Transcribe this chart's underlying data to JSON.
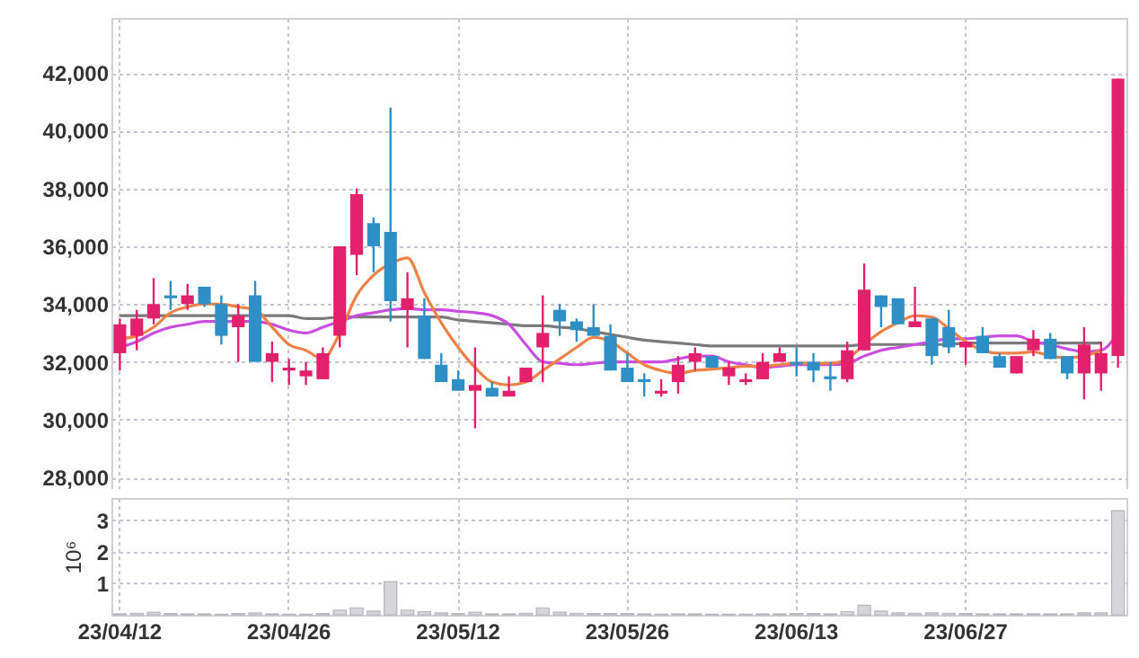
{
  "chart_data": [
    {
      "type": "candlestick",
      "categories": [
        null,
        null,
        null,
        null,
        null,
        null,
        null,
        null,
        null,
        null,
        null,
        null,
        null,
        null,
        null,
        null,
        null,
        null,
        null,
        null,
        null,
        null,
        null,
        null,
        null,
        null,
        null,
        null,
        null,
        null,
        null,
        null,
        null,
        null,
        null,
        null,
        null,
        null,
        null,
        null,
        null,
        null,
        null,
        null,
        null,
        null,
        null,
        null,
        null,
        null,
        null,
        null,
        null,
        null,
        null,
        null,
        null,
        null,
        null,
        null
      ],
      "ohlc": [
        [
          32300,
          33500,
          31700,
          33300
        ],
        [
          32900,
          33800,
          32400,
          33500
        ],
        [
          33500,
          34900,
          33300,
          34000
        ],
        [
          34300,
          34800,
          33800,
          34200
        ],
        [
          34000,
          34700,
          33800,
          34300
        ],
        [
          34600,
          34600,
          33900,
          34000
        ],
        [
          34000,
          34300,
          32600,
          32900
        ],
        [
          33200,
          34000,
          32000,
          33600
        ],
        [
          34300,
          34800,
          32000,
          32000
        ],
        [
          32000,
          32700,
          31300,
          32300
        ],
        [
          31700,
          32100,
          31200,
          31800
        ],
        [
          31500,
          32000,
          31200,
          31700
        ],
        [
          31400,
          32500,
          31400,
          32300
        ],
        [
          32900,
          36000,
          32500,
          36000
        ],
        [
          35700,
          38000,
          35000,
          37800
        ],
        [
          36800,
          37000,
          35100,
          36000
        ],
        [
          36500,
          40800,
          33400,
          34100
        ],
        [
          33800,
          35100,
          32500,
          34200
        ],
        [
          33600,
          34200,
          32100,
          32100
        ],
        [
          31900,
          32300,
          31300,
          31300
        ],
        [
          31400,
          31700,
          31000,
          31000
        ],
        [
          31000,
          32500,
          29700,
          31200
        ],
        [
          31100,
          31300,
          30800,
          30800
        ],
        [
          30800,
          31500,
          30800,
          31000
        ],
        [
          31300,
          31800,
          31300,
          31800
        ],
        [
          32500,
          34300,
          31300,
          33000
        ],
        [
          33800,
          34000,
          32900,
          33400
        ],
        [
          33400,
          33500,
          32700,
          33100
        ],
        [
          33200,
          34000,
          32900,
          32900
        ],
        [
          32900,
          33300,
          31700,
          31700
        ],
        [
          31800,
          32300,
          31300,
          31300
        ],
        [
          31400,
          31600,
          30800,
          31300
        ],
        [
          30900,
          31400,
          30800,
          31000
        ],
        [
          31300,
          32200,
          30900,
          31900
        ],
        [
          32000,
          32500,
          31700,
          32300
        ],
        [
          32200,
          32200,
          31800,
          31800
        ],
        [
          31500,
          32000,
          31200,
          31800
        ],
        [
          31300,
          31600,
          31200,
          31400
        ],
        [
          31400,
          32300,
          31400,
          32000
        ],
        [
          32000,
          32500,
          32000,
          32300
        ],
        [
          32000,
          32500,
          31500,
          31900
        ],
        [
          32000,
          32300,
          31300,
          31700
        ],
        [
          31500,
          32000,
          31000,
          31400
        ],
        [
          31400,
          32700,
          31300,
          32400
        ],
        [
          32400,
          35400,
          32400,
          34500
        ],
        [
          34300,
          34300,
          33200,
          33900
        ],
        [
          34200,
          34200,
          33300,
          33300
        ],
        [
          33200,
          34600,
          33200,
          33400
        ],
        [
          33500,
          33500,
          31900,
          32200
        ],
        [
          33200,
          33800,
          32300,
          32500
        ],
        [
          32500,
          32700,
          31900,
          32700
        ],
        [
          32900,
          33200,
          32300,
          32300
        ],
        [
          32200,
          32300,
          31800,
          31800
        ],
        [
          31600,
          32200,
          31600,
          32200
        ],
        [
          32400,
          33100,
          32200,
          32800
        ],
        [
          32800,
          33000,
          32100,
          32100
        ],
        [
          32200,
          32200,
          31400,
          31600
        ],
        [
          31600,
          33200,
          30700,
          32600
        ],
        [
          31600,
          32700,
          31000,
          32300
        ],
        [
          32200,
          41800,
          31800,
          41800
        ]
      ],
      "colors": [
        "#e3206b",
        "#e3206b",
        "#e3206b",
        "#2e8fc6",
        "#e3206b",
        "#2e8fc6",
        "#2e8fc6",
        "#e3206b",
        "#2e8fc6",
        "#e3206b",
        "#e3206b",
        "#e3206b",
        "#e3206b",
        "#e3206b",
        "#e3206b",
        "#2e8fc6",
        "#2e8fc6",
        "#e3206b",
        "#2e8fc6",
        "#2e8fc6",
        "#2e8fc6",
        "#e3206b",
        "#2e8fc6",
        "#e3206b",
        "#e3206b",
        "#e3206b",
        "#2e8fc6",
        "#2e8fc6",
        "#2e8fc6",
        "#2e8fc6",
        "#2e8fc6",
        "#2e8fc6",
        "#e3206b",
        "#e3206b",
        "#e3206b",
        "#2e8fc6",
        "#e3206b",
        "#e3206b",
        "#e3206b",
        "#e3206b",
        "#2e8fc6",
        "#2e8fc6",
        "#2e8fc6",
        "#e3206b",
        "#e3206b",
        "#2e8fc6",
        "#2e8fc6",
        "#e3206b",
        "#2e8fc6",
        "#2e8fc6",
        "#e3206b",
        "#2e8fc6",
        "#2e8fc6",
        "#e3206b",
        "#e3206b",
        "#2e8fc6",
        "#2e8fc6",
        "#e3206b",
        "#e3206b",
        "#e3206b"
      ],
      "series": [
        {
          "type": "line",
          "color": "#7a7a7a",
          "values": [
            33600,
            33600,
            33600,
            33600,
            33600,
            33600,
            33600,
            33600,
            33600,
            33600,
            33600,
            33500,
            33500,
            33550,
            33550,
            33550,
            33550,
            33550,
            33550,
            33550,
            33450,
            33400,
            33350,
            33300,
            33250,
            33250,
            33200,
            33150,
            33050,
            32950,
            32850,
            32750,
            32700,
            32650,
            32600,
            32550,
            32550,
            32550,
            32550,
            32550,
            32550,
            32550,
            32550,
            32550,
            32600,
            32600,
            32600,
            32600,
            32600,
            32600,
            32650,
            32650,
            32650,
            32650,
            32650,
            32650,
            32650,
            32650,
            32650,
            null
          ]
        },
        {
          "type": "line",
          "color": "#c94ee0",
          "values": [
            32500,
            32700,
            33000,
            33200,
            33300,
            33400,
            33400,
            33400,
            33400,
            33300,
            33100,
            33000,
            33200,
            33400,
            33600,
            33700,
            33800,
            33850,
            33800,
            33800,
            33750,
            33700,
            33600,
            33300,
            32600,
            32000,
            31950,
            31900,
            31950,
            32000,
            32000,
            32000,
            32000,
            32100,
            32200,
            32200,
            32000,
            31900,
            31800,
            31850,
            31900,
            31900,
            31900,
            31950,
            32200,
            32400,
            32500,
            32600,
            32700,
            32800,
            32800,
            32850,
            32900,
            32900,
            32700,
            32600,
            32450,
            32350,
            32400,
            33000
          ]
        },
        {
          "type": "line",
          "color": "#ee8146",
          "values": [
            32800,
            32900,
            33200,
            33700,
            33900,
            34000,
            34000,
            33900,
            33800,
            33200,
            32600,
            32400,
            32100,
            33000,
            34300,
            35000,
            35400,
            35600,
            34400,
            33350,
            32500,
            31800,
            31300,
            31200,
            31300,
            31700,
            32100,
            32500,
            32850,
            32700,
            32300,
            31900,
            31700,
            31600,
            31700,
            31750,
            31800,
            31850,
            31850,
            31900,
            31950,
            31950,
            31950,
            32100,
            32600,
            33050,
            33350,
            33600,
            33550,
            33150,
            32700,
            32400,
            32300,
            32300,
            32350,
            32200,
            32150,
            32200,
            32400,
            null
          ]
        }
      ],
      "ylim": [
        27600,
        43900
      ],
      "yticks": [
        {
          "value": 28000,
          "label": "28,000"
        },
        {
          "value": 30000,
          "label": "30,000"
        },
        {
          "value": 32000,
          "label": "32,000"
        },
        {
          "value": 34000,
          "label": "34,000"
        },
        {
          "value": 36000,
          "label": "36,000"
        },
        {
          "value": 38000,
          "label": "38,000"
        },
        {
          "value": 40000,
          "label": "40,000"
        },
        {
          "value": 42000,
          "label": "42,000"
        }
      ],
      "grid": true,
      "tick_labels": "y"
    },
    {
      "type": "bar",
      "ylabel": "10⁶",
      "categories": [
        "23/04/12",
        null,
        null,
        null,
        null,
        null,
        null,
        null,
        null,
        null,
        "23/04/26",
        null,
        null,
        null,
        null,
        null,
        null,
        null,
        null,
        null,
        "23/05/12",
        null,
        null,
        null,
        null,
        null,
        null,
        null,
        null,
        null,
        "23/05/26",
        null,
        null,
        null,
        null,
        null,
        null,
        null,
        null,
        null,
        "23/06/13",
        null,
        null,
        null,
        null,
        null,
        null,
        null,
        null,
        null,
        "23/06/27",
        null,
        null,
        null,
        null,
        null,
        null,
        null,
        null,
        null
      ],
      "values": [
        0.03,
        0.05,
        0.08,
        0.04,
        0.03,
        0.03,
        0.02,
        0.04,
        0.06,
        0.03,
        0.02,
        0.02,
        0.04,
        0.15,
        0.22,
        0.12,
        1.05,
        0.15,
        0.1,
        0.06,
        0.04,
        0.08,
        0.03,
        0.03,
        0.05,
        0.22,
        0.08,
        0.05,
        0.04,
        0.04,
        0.04,
        0.03,
        0.02,
        0.03,
        0.03,
        0.02,
        0.02,
        0.02,
        0.03,
        0.03,
        0.04,
        0.04,
        0.03,
        0.1,
        0.3,
        0.12,
        0.06,
        0.05,
        0.06,
        0.05,
        0.04,
        0.03,
        0.03,
        0.03,
        0.03,
        0.03,
        0.03,
        0.06,
        0.06,
        3.3
      ],
      "color": "#d6d6da",
      "ylim": [
        0,
        3.7
      ],
      "yticks": [
        1,
        2,
        3
      ],
      "grid": true
    }
  ]
}
